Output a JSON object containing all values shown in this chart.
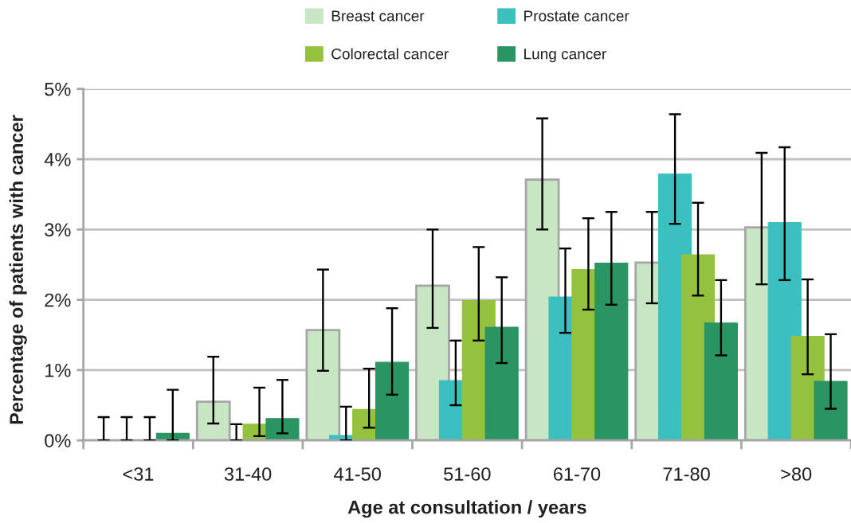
{
  "chart_data": {
    "type": "bar",
    "xlabel": "Age at consultation / years",
    "ylabel": "Percentage of patients with cancer",
    "categories": [
      "<31",
      "31-40",
      "41-50",
      "51-60",
      "61-70",
      "71-80",
      ">80"
    ],
    "series": [
      {
        "name": "Breast cancer",
        "color": "#c8e6c3",
        "values": [
          0,
          0.55,
          1.57,
          2.2,
          3.71,
          2.53,
          3.03
        ],
        "errors": [
          [
            0,
            0.33
          ],
          [
            0.24,
            1.19
          ],
          [
            0.99,
            2.43
          ],
          [
            1.6,
            3.0
          ],
          [
            3.0,
            4.58
          ],
          [
            1.95,
            3.25
          ],
          [
            2.22,
            4.09
          ]
        ]
      },
      {
        "name": "Prostate cancer",
        "color": "#3bbfbf",
        "values": [
          0,
          0,
          0.07,
          0.85,
          2.04,
          3.79,
          3.1
        ],
        "errors": [
          [
            0,
            0.33
          ],
          [
            0,
            0.23
          ],
          [
            0,
            0.48
          ],
          [
            0.5,
            1.42
          ],
          [
            1.53,
            2.73
          ],
          [
            3.08,
            4.64
          ],
          [
            2.28,
            4.17
          ]
        ]
      },
      {
        "name": "Colorectal cancer",
        "color": "#94c23e",
        "values": [
          0,
          0.23,
          0.44,
          1.99,
          2.43,
          2.64,
          1.48
        ],
        "errors": [
          [
            0,
            0.33
          ],
          [
            0.06,
            0.75
          ],
          [
            0.18,
            1.02
          ],
          [
            1.42,
            2.75
          ],
          [
            1.86,
            3.16
          ],
          [
            2.06,
            3.38
          ],
          [
            0.94,
            2.29
          ]
        ]
      },
      {
        "name": "Lung cancer",
        "color": "#2a9462",
        "values": [
          0.1,
          0.31,
          1.11,
          1.61,
          2.52,
          1.67,
          0.84
        ],
        "errors": [
          [
            0,
            0.72
          ],
          [
            0.1,
            0.86
          ],
          [
            0.65,
            1.88
          ],
          [
            1.1,
            2.32
          ],
          [
            1.93,
            3.25
          ],
          [
            1.21,
            2.28
          ],
          [
            0.45,
            1.51
          ]
        ]
      }
    ],
    "ylim": [
      0,
      5
    ],
    "yticks": [
      {
        "value": 0,
        "label": "0%"
      },
      {
        "value": 1,
        "label": "1%"
      },
      {
        "value": 2,
        "label": "2%"
      },
      {
        "value": 3,
        "label": "3%"
      },
      {
        "value": 4,
        "label": "4%"
      },
      {
        "value": 5,
        "label": "5%"
      }
    ],
    "grid": "y",
    "legend": "top"
  }
}
